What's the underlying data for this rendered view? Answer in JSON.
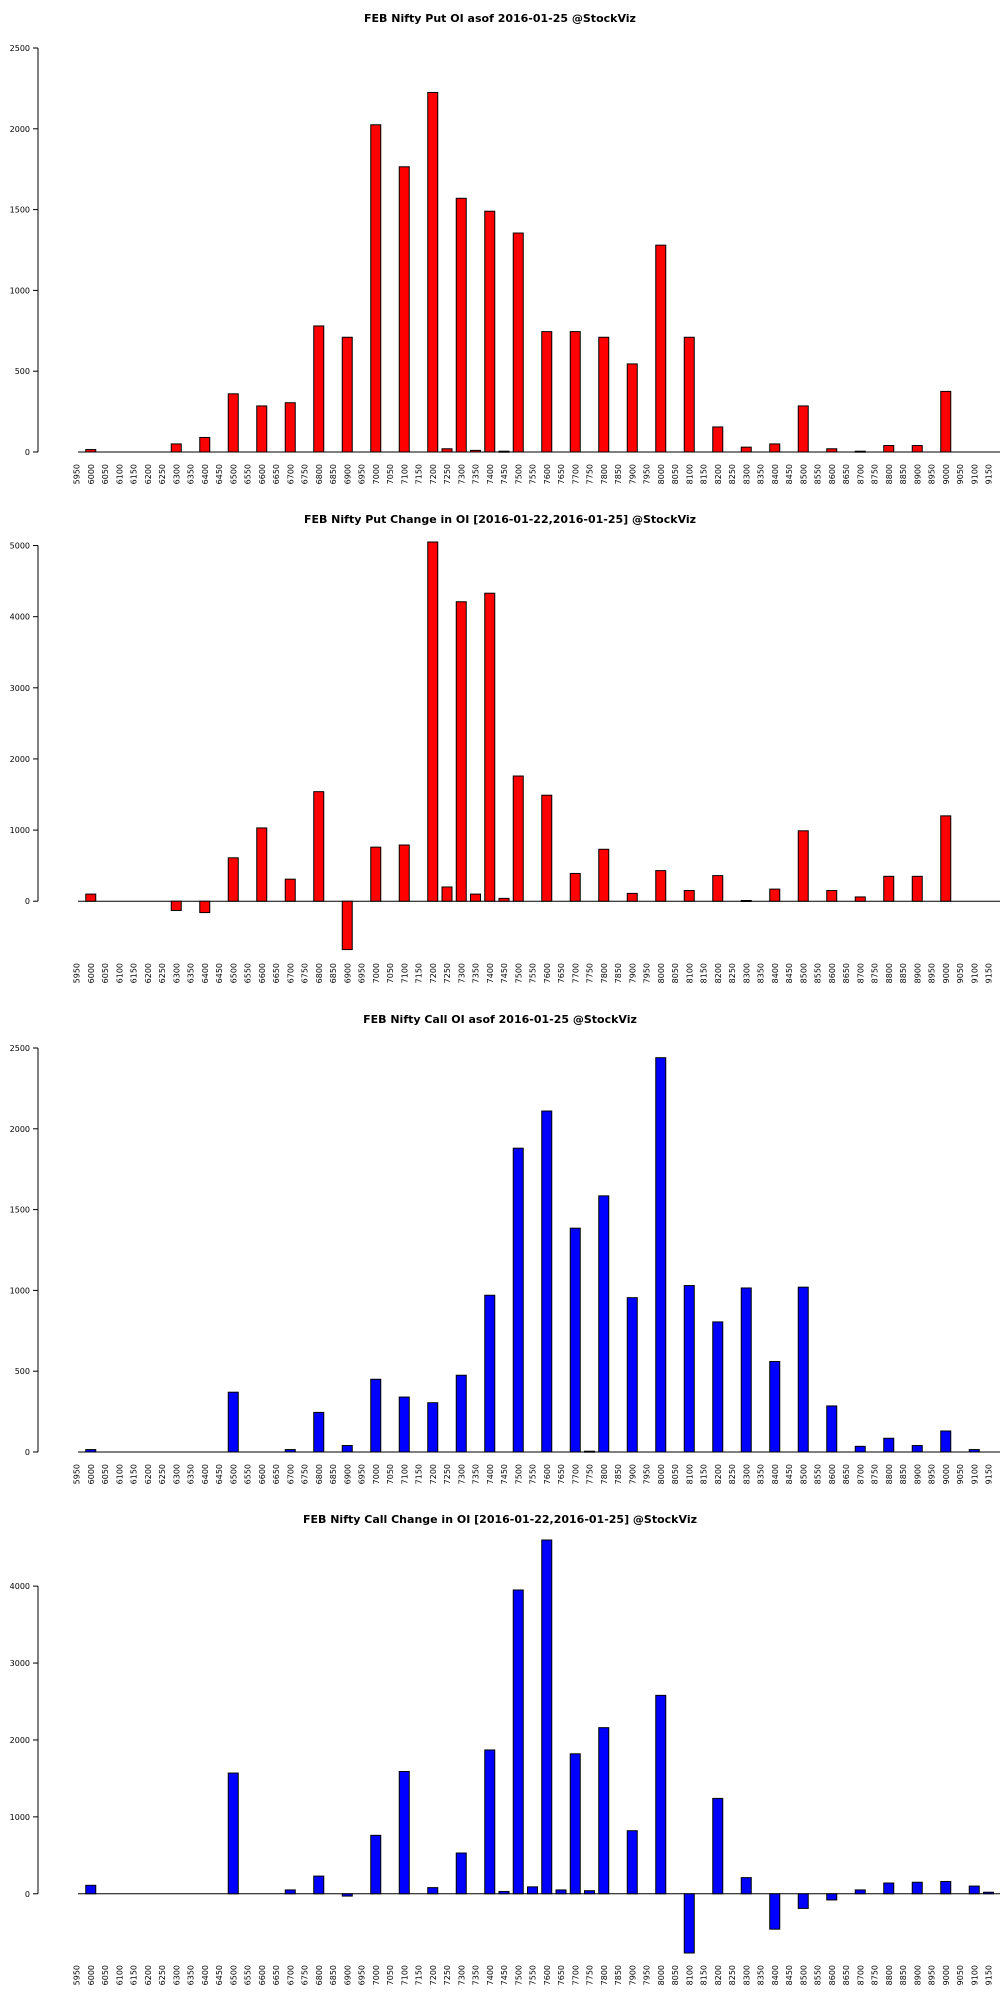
{
  "colors": {
    "put": "#ff0000",
    "call": "#0000ff"
  },
  "chart_data": [
    {
      "type": "bar",
      "title": "FEB Nifty Put OI asof 2016-01-25 @StockViz",
      "color": "#ff0000",
      "categories": [
        "5950",
        "6000",
        "6050",
        "6100",
        "6150",
        "6200",
        "6250",
        "6300",
        "6350",
        "6400",
        "6450",
        "6500",
        "6550",
        "6600",
        "6650",
        "6700",
        "6750",
        "6800",
        "6850",
        "6900",
        "6950",
        "7000",
        "7050",
        "7100",
        "7150",
        "7200",
        "7250",
        "7300",
        "7350",
        "7400",
        "7450",
        "7500",
        "7550",
        "7600",
        "7650",
        "7700",
        "7750",
        "7800",
        "7850",
        "7900",
        "7950",
        "8000",
        "8050",
        "8100",
        "8150",
        "8200",
        "8250",
        "8300",
        "8350",
        "8400",
        "8450",
        "8500",
        "8550",
        "8600",
        "8650",
        "8700",
        "8750",
        "8800",
        "8850",
        "8900",
        "8950",
        "9000",
        "9050",
        "9100",
        "9150"
      ],
      "values": [
        0,
        15,
        0,
        0,
        0,
        0,
        0,
        50,
        0,
        90,
        0,
        360,
        0,
        285,
        0,
        305,
        0,
        780,
        0,
        710,
        0,
        2025,
        0,
        1765,
        0,
        2225,
        20,
        1570,
        10,
        1490,
        5,
        1355,
        0,
        745,
        0,
        745,
        0,
        710,
        0,
        545,
        0,
        1280,
        0,
        710,
        0,
        155,
        0,
        30,
        0,
        50,
        0,
        285,
        0,
        20,
        0,
        5,
        0,
        40,
        0,
        40,
        0,
        375,
        0,
        0,
        0
      ],
      "ylim": [
        0,
        2500
      ],
      "yticks": [
        0,
        500,
        1000,
        1500,
        2000,
        2500
      ],
      "xlabel": "",
      "ylabel": "",
      "grid": false
    },
    {
      "type": "bar",
      "title": "FEB Nifty Put Change in OI [2016-01-22,2016-01-25] @StockViz",
      "color": "#ff0000",
      "categories": [
        "5950",
        "6000",
        "6050",
        "6100",
        "6150",
        "6200",
        "6250",
        "6300",
        "6350",
        "6400",
        "6450",
        "6500",
        "6550",
        "6600",
        "6650",
        "6700",
        "6750",
        "6800",
        "6850",
        "6900",
        "6950",
        "7000",
        "7050",
        "7100",
        "7150",
        "7200",
        "7250",
        "7300",
        "7350",
        "7400",
        "7450",
        "7500",
        "7550",
        "7600",
        "7650",
        "7700",
        "7750",
        "7800",
        "7850",
        "7900",
        "7950",
        "8000",
        "8050",
        "8100",
        "8150",
        "8200",
        "8250",
        "8300",
        "8350",
        "8400",
        "8450",
        "8500",
        "8550",
        "8600",
        "8650",
        "8700",
        "8750",
        "8800",
        "8850",
        "8900",
        "8950",
        "9000",
        "9050",
        "9100",
        "9150"
      ],
      "values": [
        0,
        100,
        0,
        0,
        0,
        0,
        0,
        -130,
        0,
        -160,
        0,
        610,
        0,
        1030,
        0,
        310,
        0,
        1540,
        0,
        -680,
        0,
        760,
        0,
        790,
        0,
        5050,
        200,
        4210,
        100,
        4330,
        40,
        1760,
        0,
        1490,
        0,
        390,
        0,
        730,
        0,
        110,
        0,
        430,
        0,
        150,
        0,
        360,
        0,
        10,
        0,
        170,
        0,
        990,
        0,
        150,
        0,
        60,
        0,
        350,
        0,
        350,
        0,
        1200,
        0,
        0,
        0
      ],
      "ylim": [
        -700,
        5050
      ],
      "yticks": [
        0,
        1000,
        2000,
        3000,
        4000,
        5000
      ],
      "xlabel": "",
      "ylabel": "",
      "grid": false
    },
    {
      "type": "bar",
      "title": "FEB Nifty Call OI asof 2016-01-25 @StockViz",
      "color": "#0000ff",
      "categories": [
        "5950",
        "6000",
        "6050",
        "6100",
        "6150",
        "6200",
        "6250",
        "6300",
        "6350",
        "6400",
        "6450",
        "6500",
        "6550",
        "6600",
        "6650",
        "6700",
        "6750",
        "6800",
        "6850",
        "6900",
        "6950",
        "7000",
        "7050",
        "7100",
        "7150",
        "7200",
        "7250",
        "7300",
        "7350",
        "7400",
        "7450",
        "7500",
        "7550",
        "7600",
        "7650",
        "7700",
        "7750",
        "7800",
        "7850",
        "7900",
        "7950",
        "8000",
        "8050",
        "8100",
        "8150",
        "8200",
        "8250",
        "8300",
        "8350",
        "8400",
        "8450",
        "8500",
        "8550",
        "8600",
        "8650",
        "8700",
        "8750",
        "8800",
        "8850",
        "8900",
        "8950",
        "9000",
        "9050",
        "9100",
        "9150"
      ],
      "values": [
        0,
        15,
        0,
        0,
        0,
        0,
        0,
        0,
        0,
        0,
        0,
        370,
        0,
        0,
        0,
        15,
        0,
        245,
        0,
        40,
        0,
        450,
        0,
        340,
        0,
        305,
        0,
        475,
        0,
        970,
        0,
        1880,
        0,
        2110,
        0,
        1385,
        5,
        1585,
        0,
        955,
        0,
        2440,
        0,
        1030,
        0,
        805,
        0,
        1015,
        0,
        560,
        0,
        1020,
        0,
        285,
        0,
        35,
        0,
        85,
        0,
        40,
        0,
        130,
        0,
        15,
        0
      ],
      "ylim": [
        0,
        2500
      ],
      "yticks": [
        0,
        500,
        1000,
        1500,
        2000,
        2500
      ],
      "xlabel": "",
      "ylabel": "",
      "grid": false
    },
    {
      "type": "bar",
      "title": "FEB Nifty Call Change in OI [2016-01-22,2016-01-25] @StockViz",
      "color": "#0000ff",
      "categories": [
        "5950",
        "6000",
        "6050",
        "6100",
        "6150",
        "6200",
        "6250",
        "6300",
        "6350",
        "6400",
        "6450",
        "6500",
        "6550",
        "6600",
        "6650",
        "6700",
        "6750",
        "6800",
        "6850",
        "6900",
        "6950",
        "7000",
        "7050",
        "7100",
        "7150",
        "7200",
        "7250",
        "7300",
        "7350",
        "7400",
        "7450",
        "7500",
        "7550",
        "7600",
        "7650",
        "7700",
        "7750",
        "7800",
        "7850",
        "7900",
        "7950",
        "8000",
        "8050",
        "8100",
        "8150",
        "8200",
        "8250",
        "8300",
        "8350",
        "8400",
        "8450",
        "8500",
        "8550",
        "8600",
        "8650",
        "8700",
        "8750",
        "8800",
        "8850",
        "8900",
        "8950",
        "9000",
        "9050",
        "9100",
        "9150"
      ],
      "values": [
        0,
        110,
        0,
        0,
        0,
        0,
        0,
        0,
        0,
        0,
        0,
        1570,
        0,
        0,
        0,
        50,
        0,
        230,
        0,
        -30,
        0,
        760,
        0,
        1590,
        0,
        80,
        0,
        530,
        0,
        1870,
        30,
        3950,
        90,
        4600,
        50,
        1820,
        40,
        2160,
        0,
        820,
        0,
        2580,
        0,
        -770,
        0,
        1240,
        0,
        210,
        0,
        -460,
        0,
        -190,
        0,
        -80,
        0,
        50,
        0,
        140,
        0,
        150,
        0,
        160,
        0,
        100,
        20
      ],
      "ylim": [
        -770,
        4600
      ],
      "yticks": [
        0,
        1000,
        2000,
        3000,
        4000
      ],
      "xlabel": "",
      "ylabel": "",
      "grid": false
    }
  ]
}
